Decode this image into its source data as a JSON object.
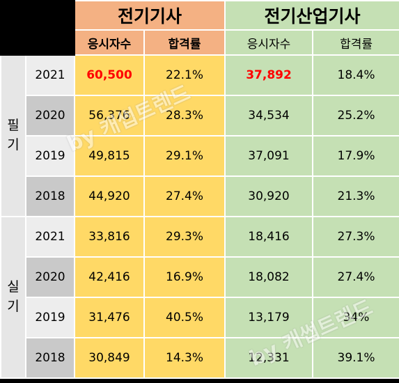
{
  "groups": {
    "g1": "전기기사",
    "g2": "전기산업기사"
  },
  "columns": {
    "g1_applicants": "응시자수",
    "g1_pass_rate": "합격률",
    "g2_applicants": "응시자수",
    "g2_pass_rate": "합격률"
  },
  "categories": {
    "written": "필기",
    "practical": "실기"
  },
  "written_rows": [
    {
      "year": "2021",
      "g1_applicants": "60,500",
      "g1_pass_rate": "22.1%",
      "g2_applicants": "37,892",
      "g2_pass_rate": "18.4%"
    },
    {
      "year": "2020",
      "g1_applicants": "56,376",
      "g1_pass_rate": "28.3%",
      "g2_applicants": "34,534",
      "g2_pass_rate": "25.2%"
    },
    {
      "year": "2019",
      "g1_applicants": "49,815",
      "g1_pass_rate": "29.1%",
      "g2_applicants": "37,091",
      "g2_pass_rate": "17.9%"
    },
    {
      "year": "2018",
      "g1_applicants": "44,920",
      "g1_pass_rate": "27.4%",
      "g2_applicants": "30,920",
      "g2_pass_rate": "21.3%"
    }
  ],
  "practical_rows": [
    {
      "year": "2021",
      "g1_applicants": "33,816",
      "g1_pass_rate": "29.3%",
      "g2_applicants": "18,416",
      "g2_pass_rate": "27.3%"
    },
    {
      "year": "2020",
      "g1_applicants": "42,416",
      "g1_pass_rate": "16.9%",
      "g2_applicants": "18,082",
      "g2_pass_rate": "27.4%"
    },
    {
      "year": "2019",
      "g1_applicants": "31,476",
      "g1_pass_rate": "40.5%",
      "g2_applicants": "13,179",
      "g2_pass_rate": "34%"
    },
    {
      "year": "2018",
      "g1_applicants": "30,849",
      "g1_pass_rate": "14.3%",
      "g2_applicants": "12,331",
      "g2_pass_rate": "39.1%"
    }
  ],
  "watermark": "by 캐썹트렌드",
  "colors": {
    "g1_title_bg": "#f4b183",
    "g1_sub_bg": "#f4b183",
    "g1_cell_bg": "#ffd966",
    "g2_title_bg": "#c5e0b4",
    "g2_sub_bg": "#c5e0b4",
    "g2_cell_bg": "#c5e0b4",
    "year_light_bg": "#ededed",
    "year_dark_bg": "#c9c9c9",
    "highlight_text": "#ff0000"
  }
}
